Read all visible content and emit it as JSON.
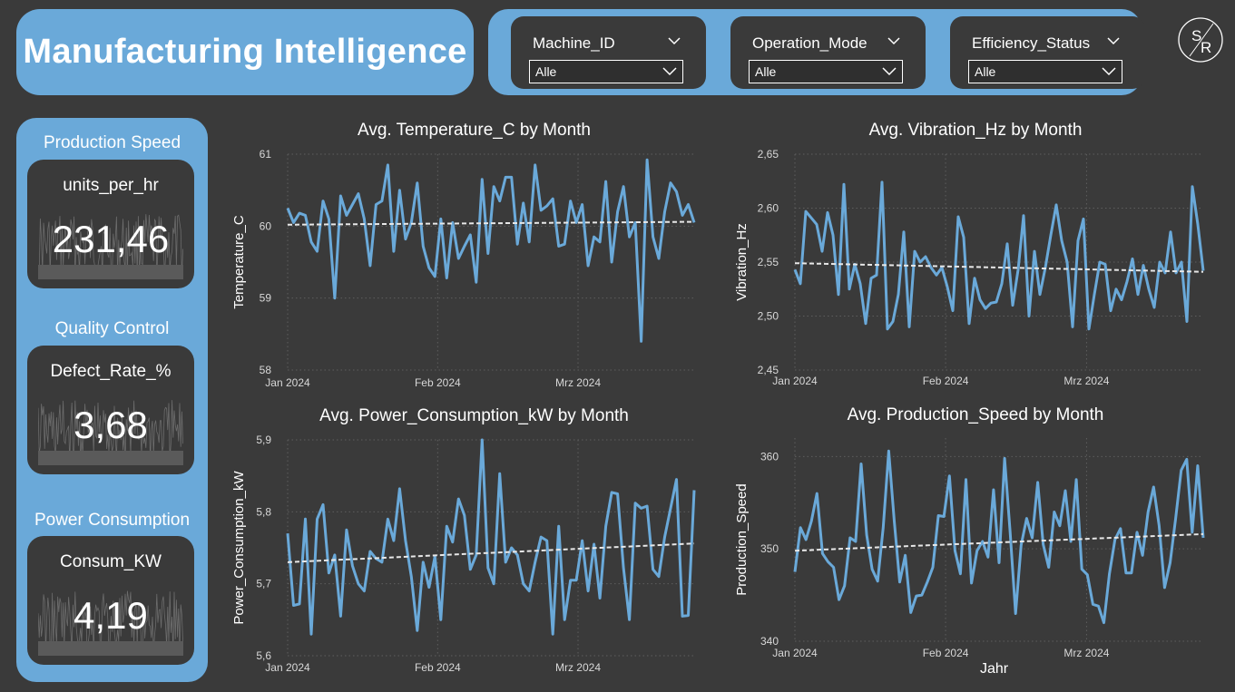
{
  "app": {
    "title": "Manufacturing Intelligence",
    "accent_color": "#6aa9d9",
    "background_color": "#3a3a3a",
    "logo_text": "SR"
  },
  "filters": [
    {
      "label": "Machine_ID",
      "value": "Alle"
    },
    {
      "label": "Operation_Mode",
      "value": "Alle"
    },
    {
      "label": "Efficiency_Status",
      "value": "Alle"
    }
  ],
  "kpis": [
    {
      "title": "Production Speed",
      "label": "units_per_hr",
      "value": "231,46"
    },
    {
      "title": "Quality Control",
      "label": "Defect_Rate_%",
      "value": "3,68"
    },
    {
      "title": "Power Consumption",
      "label": "Consum_KW",
      "value": "4,19"
    }
  ],
  "x_axis_name": "Jahr",
  "chart_data": [
    {
      "type": "line",
      "title": "Avg. Temperature_C by Month",
      "ylabel": "Temperature_C",
      "xlabel": "",
      "ylim": [
        58,
        61
      ],
      "yticks": [
        "58",
        "59",
        "60",
        "61"
      ],
      "xticks": [
        "Jan 2024",
        "Feb 2024",
        "Mrz 2024"
      ],
      "x_start": "2024-01-01",
      "x_end": "2024-03-25",
      "grid": true,
      "series_color": "#6aa9d9",
      "trend": [
        60.02,
        60.06
      ],
      "values": [
        60.25,
        60.05,
        60.18,
        60.15,
        59.78,
        59.65,
        60.35,
        60.1,
        59.0,
        60.42,
        60.15,
        60.3,
        60.45,
        60.1,
        59.45,
        60.3,
        60.35,
        60.85,
        59.65,
        60.5,
        59.82,
        60.05,
        60.6,
        59.72,
        59.42,
        59.3,
        60.1,
        59.28,
        60.05,
        59.55,
        59.72,
        59.88,
        59.22,
        60.65,
        59.62,
        60.55,
        60.35,
        60.68,
        60.68,
        59.75,
        60.32,
        59.78,
        60.85,
        60.22,
        60.28,
        60.38,
        59.72,
        59.75,
        60.35,
        60.05,
        60.3,
        59.45,
        59.85,
        59.78,
        60.62,
        59.5,
        60.2,
        60.55,
        59.85,
        60.05,
        58.4,
        60.92,
        59.85,
        59.55,
        60.2,
        60.6,
        60.48,
        60.15,
        60.3,
        60.05
      ]
    },
    {
      "type": "line",
      "title": "Avg. Vibration_Hz by Month",
      "ylabel": "Vibration_Hz",
      "xlabel": "",
      "ylim": [
        2.45,
        2.65
      ],
      "yticks": [
        "2,45",
        "2,50",
        "2,55",
        "2,60",
        "2,65"
      ],
      "xticks": [
        "Jan 2024",
        "Feb 2024",
        "Mrz 2024"
      ],
      "x_start": "2024-01-01",
      "x_end": "2024-03-25",
      "grid": true,
      "series_color": "#6aa9d9",
      "trend": [
        2.549,
        2.541
      ],
      "values": [
        2.543,
        2.53,
        2.597,
        2.591,
        2.585,
        2.56,
        2.596,
        2.575,
        2.52,
        2.622,
        2.525,
        2.548,
        2.53,
        2.493,
        2.535,
        2.538,
        2.624,
        2.488,
        2.495,
        2.52,
        2.578,
        2.49,
        2.56,
        2.55,
        2.555,
        2.545,
        2.538,
        2.545,
        2.527,
        2.505,
        2.592,
        2.573,
        2.493,
        2.535,
        2.515,
        2.507,
        2.512,
        2.513,
        2.53,
        2.567,
        2.51,
        2.543,
        2.593,
        2.5,
        2.56,
        2.52,
        2.545,
        2.575,
        2.603,
        2.57,
        2.55,
        2.49,
        2.57,
        2.59,
        2.488,
        2.52,
        2.55,
        2.548,
        2.505,
        2.525,
        2.515,
        2.532,
        2.553,
        2.52,
        2.547,
        2.525,
        2.508,
        2.55,
        2.54,
        2.578,
        2.54,
        2.55,
        2.495,
        2.62,
        2.585,
        2.542
      ]
    },
    {
      "type": "line",
      "title": "Avg. Power_Consumption_kW by Month",
      "ylabel": "Power_Consumption_kW",
      "xlabel": "",
      "ylim": [
        5.6,
        5.9
      ],
      "yticks": [
        "5,6",
        "5,7",
        "5,8",
        "5,9"
      ],
      "xticks": [
        "Jan 2024",
        "Feb 2024",
        "Mrz 2024"
      ],
      "x_start": "2024-01-01",
      "x_end": "2024-03-25",
      "grid": true,
      "series_color": "#6aa9d9",
      "trend": [
        5.73,
        5.756
      ],
      "values": [
        5.77,
        5.67,
        5.672,
        5.79,
        5.63,
        5.79,
        5.81,
        5.715,
        5.74,
        5.655,
        5.775,
        5.725,
        5.7,
        5.69,
        5.745,
        5.735,
        5.73,
        5.79,
        5.76,
        5.832,
        5.76,
        5.71,
        5.635,
        5.73,
        5.695,
        5.738,
        5.65,
        5.78,
        5.758,
        5.818,
        5.795,
        5.72,
        5.74,
        5.9,
        5.722,
        5.7,
        5.853,
        5.73,
        5.75,
        5.74,
        5.7,
        5.69,
        5.73,
        5.765,
        5.76,
        5.63,
        5.78,
        5.65,
        5.705,
        5.705,
        5.76,
        5.69,
        5.755,
        5.68,
        5.78,
        5.827,
        5.825,
        5.722,
        5.65,
        5.812,
        5.805,
        5.808,
        5.72,
        5.71,
        5.765,
        5.805,
        5.845,
        5.655,
        5.656,
        5.83
      ]
    },
    {
      "type": "line",
      "title": "Avg. Production_Speed by Month",
      "ylabel": "Production_Speed",
      "xlabel": "Jahr",
      "ylim": [
        340,
        362
      ],
      "yticks": [
        "340",
        "350",
        "360"
      ],
      "xticks": [
        "Jan 2024",
        "Feb 2024",
        "Mrz 2024"
      ],
      "x_start": "2024-01-01",
      "x_end": "2024-03-25",
      "grid": true,
      "series_color": "#6aa9d9",
      "trend": [
        349.8,
        351.6
      ],
      "values": [
        347.5,
        352.3,
        351.0,
        353.0,
        356.0,
        349.5,
        348.6,
        348.0,
        344.5,
        346.0,
        351.2,
        350.8,
        359.2,
        351.5,
        347.8,
        346.5,
        352.3,
        360.6,
        353.0,
        346.4,
        349.3,
        343.1,
        344.9,
        345.0,
        346.4,
        348.0,
        353.6,
        353.5,
        357.9,
        349.8,
        347.3,
        357.5,
        346.3,
        349.8,
        350.8,
        349.1,
        356.4,
        348.5,
        359.8,
        351.8,
        343.0,
        350.4,
        353.3,
        351.2,
        357.2,
        350.5,
        348.0,
        354.0,
        352.5,
        356.3,
        350.8,
        357.5,
        347.8,
        347.2,
        344.0,
        343.8,
        342.0,
        347.3,
        351.0,
        352.2,
        347.4,
        347.4,
        351.8,
        349.3,
        354.0,
        356.7,
        352.5,
        345.8,
        348.5,
        353.3,
        358.5,
        359.7,
        351.8,
        359.0,
        351.2
      ]
    }
  ]
}
